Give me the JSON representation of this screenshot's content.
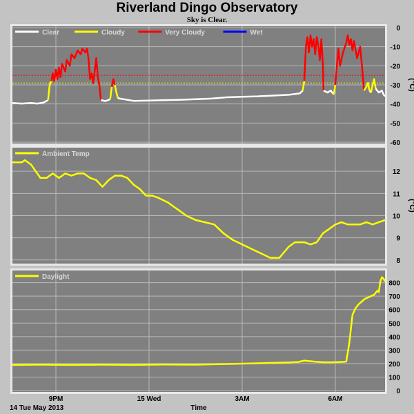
{
  "title": "Riverland Dingo Observatory",
  "subtitle": "Sky is Clear.",
  "x_axis": {
    "label": "Time",
    "date_label": "14 Tue May 2013",
    "ticks": [
      {
        "h": 21,
        "label": "9PM"
      },
      {
        "h": 24,
        "label": "15 Wed"
      },
      {
        "h": 27,
        "label": "3AM"
      },
      {
        "h": 30,
        "label": "6AM"
      }
    ],
    "range_h": [
      19.6,
      31.6
    ]
  },
  "colors": {
    "panel": "#808080",
    "clear": "#ffffff",
    "cloudy": "#ffff00",
    "very_cloudy": "#ff0000",
    "wet": "#0000ff",
    "ambient": "#ffff00",
    "daylight": "#ffff00"
  },
  "chart_data": [
    {
      "type": "line",
      "name": "sky",
      "legend": [
        {
          "label": "Clear",
          "color_key": "clear"
        },
        {
          "label": "Cloudy",
          "color_key": "cloudy"
        },
        {
          "label": "Very Cloudy",
          "color_key": "very_cloudy"
        },
        {
          "label": "Wet",
          "color_key": "wet"
        }
      ],
      "unit": "(°C)",
      "ylim": [
        -60,
        0
      ],
      "yticks": [
        0,
        -10,
        -20,
        -30,
        -40,
        -50,
        -60
      ],
      "thresholds": [
        {
          "value": -25,
          "color_key": "very_cloudy"
        },
        {
          "value": -29,
          "color_key": "cloudy"
        }
      ],
      "segments": [
        {
          "color_key": "clear",
          "points": [
            [
              19.6,
              -39.5
            ],
            [
              19.9,
              -39.8
            ],
            [
              20.2,
              -39.5
            ],
            [
              20.4,
              -39.8
            ],
            [
              20.6,
              -39.3
            ],
            [
              20.75,
              -38
            ]
          ]
        },
        {
          "color_key": "cloudy",
          "points": [
            [
              20.75,
              -38
            ],
            [
              20.8,
              -30
            ],
            [
              20.85,
              -28
            ]
          ]
        },
        {
          "color_key": "very_cloudy",
          "points": [
            [
              20.85,
              -28
            ],
            [
              20.9,
              -24
            ],
            [
              20.95,
              -28
            ],
            [
              21.0,
              -22
            ],
            [
              21.05,
              -27
            ],
            [
              21.1,
              -21
            ],
            [
              21.15,
              -26
            ],
            [
              21.2,
              -19
            ],
            [
              21.3,
              -23
            ],
            [
              21.35,
              -17
            ],
            [
              21.45,
              -20
            ],
            [
              21.5,
              -14
            ],
            [
              21.6,
              -16
            ],
            [
              21.7,
              -12
            ],
            [
              21.8,
              -14
            ],
            [
              21.85,
              -11
            ],
            [
              21.95,
              -13
            ],
            [
              22.0,
              -11
            ],
            [
              22.05,
              -16
            ],
            [
              22.1,
              -27
            ],
            [
              22.15,
              -24
            ],
            [
              22.2,
              -29
            ],
            [
              22.25,
              -23
            ],
            [
              22.3,
              -16
            ],
            [
              22.35,
              -26
            ],
            [
              22.4,
              -30
            ],
            [
              22.45,
              -38
            ]
          ]
        },
        {
          "color_key": "clear",
          "points": [
            [
              22.45,
              -38
            ],
            [
              22.6,
              -38.5
            ],
            [
              22.75,
              -37.5
            ]
          ]
        },
        {
          "color_key": "cloudy",
          "points": [
            [
              22.75,
              -37.5
            ],
            [
              22.8,
              -31
            ]
          ]
        },
        {
          "color_key": "very_cloudy",
          "points": [
            [
              22.8,
              -31
            ],
            [
              22.85,
              -27
            ],
            [
              22.9,
              -30
            ]
          ]
        },
        {
          "color_key": "cloudy",
          "points": [
            [
              22.9,
              -30
            ],
            [
              22.95,
              -34
            ],
            [
              23.0,
              -37
            ]
          ]
        },
        {
          "color_key": "clear",
          "points": [
            [
              23.0,
              -37
            ],
            [
              23.5,
              -38.4
            ],
            [
              24.0,
              -38.2
            ],
            [
              24.5,
              -38
            ],
            [
              25.0,
              -37.8
            ],
            [
              25.5,
              -37.5
            ],
            [
              26.0,
              -37.2
            ],
            [
              26.5,
              -36.5
            ],
            [
              27.0,
              -36.2
            ],
            [
              27.5,
              -36
            ],
            [
              28.0,
              -35.6
            ],
            [
              28.5,
              -35.2
            ],
            [
              28.85,
              -34.5
            ],
            [
              28.95,
              -33
            ]
          ]
        },
        {
          "color_key": "cloudy",
          "points": [
            [
              28.95,
              -33
            ],
            [
              29.0,
              -28
            ]
          ]
        },
        {
          "color_key": "very_cloudy",
          "points": [
            [
              29.0,
              -28
            ],
            [
              29.05,
              -10
            ],
            [
              29.1,
              -5
            ],
            [
              29.15,
              -13
            ],
            [
              29.2,
              -4
            ],
            [
              29.25,
              -10
            ],
            [
              29.3,
              -6
            ],
            [
              29.35,
              -14
            ],
            [
              29.4,
              -5
            ],
            [
              29.45,
              -9
            ],
            [
              29.5,
              -17
            ],
            [
              29.55,
              -6
            ],
            [
              29.6,
              -20
            ],
            [
              29.62,
              -33
            ]
          ]
        },
        {
          "color_key": "clear",
          "points": [
            [
              29.62,
              -33
            ],
            [
              29.75,
              -34
            ],
            [
              29.85,
              -33
            ],
            [
              29.95,
              -35
            ]
          ]
        },
        {
          "color_key": "cloudy",
          "points": [
            [
              29.95,
              -35
            ],
            [
              30.0,
              -30
            ]
          ]
        },
        {
          "color_key": "very_cloudy",
          "points": [
            [
              30.0,
              -30
            ],
            [
              30.05,
              -20
            ],
            [
              30.1,
              -11
            ],
            [
              30.15,
              -20
            ],
            [
              30.25,
              -13
            ],
            [
              30.35,
              -8
            ],
            [
              30.4,
              -4
            ],
            [
              30.45,
              -9
            ],
            [
              30.5,
              -6
            ],
            [
              30.55,
              -12
            ],
            [
              30.6,
              -7
            ],
            [
              30.7,
              -16
            ],
            [
              30.8,
              -10
            ],
            [
              30.85,
              -19
            ],
            [
              30.9,
              -28
            ],
            [
              30.92,
              -33
            ]
          ]
        },
        {
          "color_key": "cloudy",
          "points": [
            [
              30.92,
              -33
            ],
            [
              31.0,
              -31
            ],
            [
              31.05,
              -29
            ],
            [
              31.1,
              -33
            ]
          ]
        },
        {
          "color_key": "clear",
          "points": [
            [
              31.1,
              -33
            ],
            [
              31.15,
              -34
            ]
          ]
        },
        {
          "color_key": "cloudy",
          "points": [
            [
              31.15,
              -34
            ],
            [
              31.2,
              -30
            ],
            [
              31.25,
              -27
            ],
            [
              31.3,
              -32
            ]
          ]
        },
        {
          "color_key": "clear",
          "points": [
            [
              31.3,
              -32
            ],
            [
              31.4,
              -34
            ],
            [
              31.5,
              -33
            ],
            [
              31.55,
              -35
            ],
            [
              31.6,
              -36
            ]
          ]
        }
      ]
    },
    {
      "type": "line",
      "name": "ambient",
      "series": [
        {
          "name": "Ambient Temp",
          "color_key": "ambient",
          "x": [
            19.6,
            19.9,
            20.0,
            20.2,
            20.5,
            20.7,
            20.9,
            21.1,
            21.3,
            21.5,
            21.7,
            21.9,
            22.1,
            22.3,
            22.5,
            22.7,
            22.9,
            23.1,
            23.3,
            23.5,
            23.7,
            23.9,
            24.1,
            24.3,
            24.6,
            24.9,
            25.2,
            25.5,
            25.8,
            26.1,
            26.4,
            26.7,
            27.0,
            27.3,
            27.6,
            27.9,
            28.2,
            28.5,
            28.7,
            28.9,
            29.0,
            29.2,
            29.4,
            29.6,
            29.8,
            30.0,
            30.2,
            30.4,
            30.6,
            30.8,
            31.0,
            31.2,
            31.4,
            31.6
          ],
          "values": [
            12.4,
            12.4,
            12.5,
            12.3,
            11.7,
            11.7,
            11.9,
            11.7,
            11.9,
            11.8,
            11.9,
            11.9,
            11.7,
            11.6,
            11.3,
            11.6,
            11.8,
            11.8,
            11.7,
            11.4,
            11.2,
            10.9,
            10.9,
            10.8,
            10.6,
            10.3,
            10.0,
            9.8,
            9.7,
            9.6,
            9.2,
            8.9,
            8.7,
            8.5,
            8.3,
            8.1,
            8.1,
            8.6,
            8.8,
            8.8,
            8.8,
            8.7,
            8.8,
            9.2,
            9.4,
            9.6,
            9.7,
            9.6,
            9.6,
            9.6,
            9.7,
            9.6,
            9.7,
            9.8
          ]
        }
      ],
      "unit": "(°C)",
      "ylim": [
        7.9,
        13.0
      ],
      "yticks": [
        8,
        9,
        10,
        11,
        12
      ]
    },
    {
      "type": "line",
      "name": "daylight",
      "series": [
        {
          "name": "Daylight",
          "color_key": "daylight",
          "x": [
            19.6,
            20.5,
            21.5,
            22.5,
            23.5,
            24.5,
            25.5,
            26.5,
            27.5,
            28.5,
            28.8,
            29.0,
            29.3,
            29.6,
            29.9,
            30.2,
            30.35,
            30.45,
            30.55,
            30.65,
            30.75,
            30.85,
            30.95,
            31.05,
            31.15,
            31.25,
            31.35,
            31.4,
            31.45,
            31.5,
            31.55,
            31.6
          ],
          "values": [
            190,
            192,
            190,
            192,
            190,
            193,
            192,
            197,
            202,
            208,
            212,
            222,
            215,
            210,
            210,
            212,
            215,
            350,
            560,
            610,
            640,
            660,
            680,
            690,
            700,
            710,
            740,
            730,
            810,
            840,
            830,
            810
          ]
        }
      ],
      "unit": "",
      "ylim": [
        0,
        880
      ],
      "yticks": [
        0,
        100,
        200,
        300,
        400,
        500,
        600,
        700,
        800
      ]
    }
  ]
}
